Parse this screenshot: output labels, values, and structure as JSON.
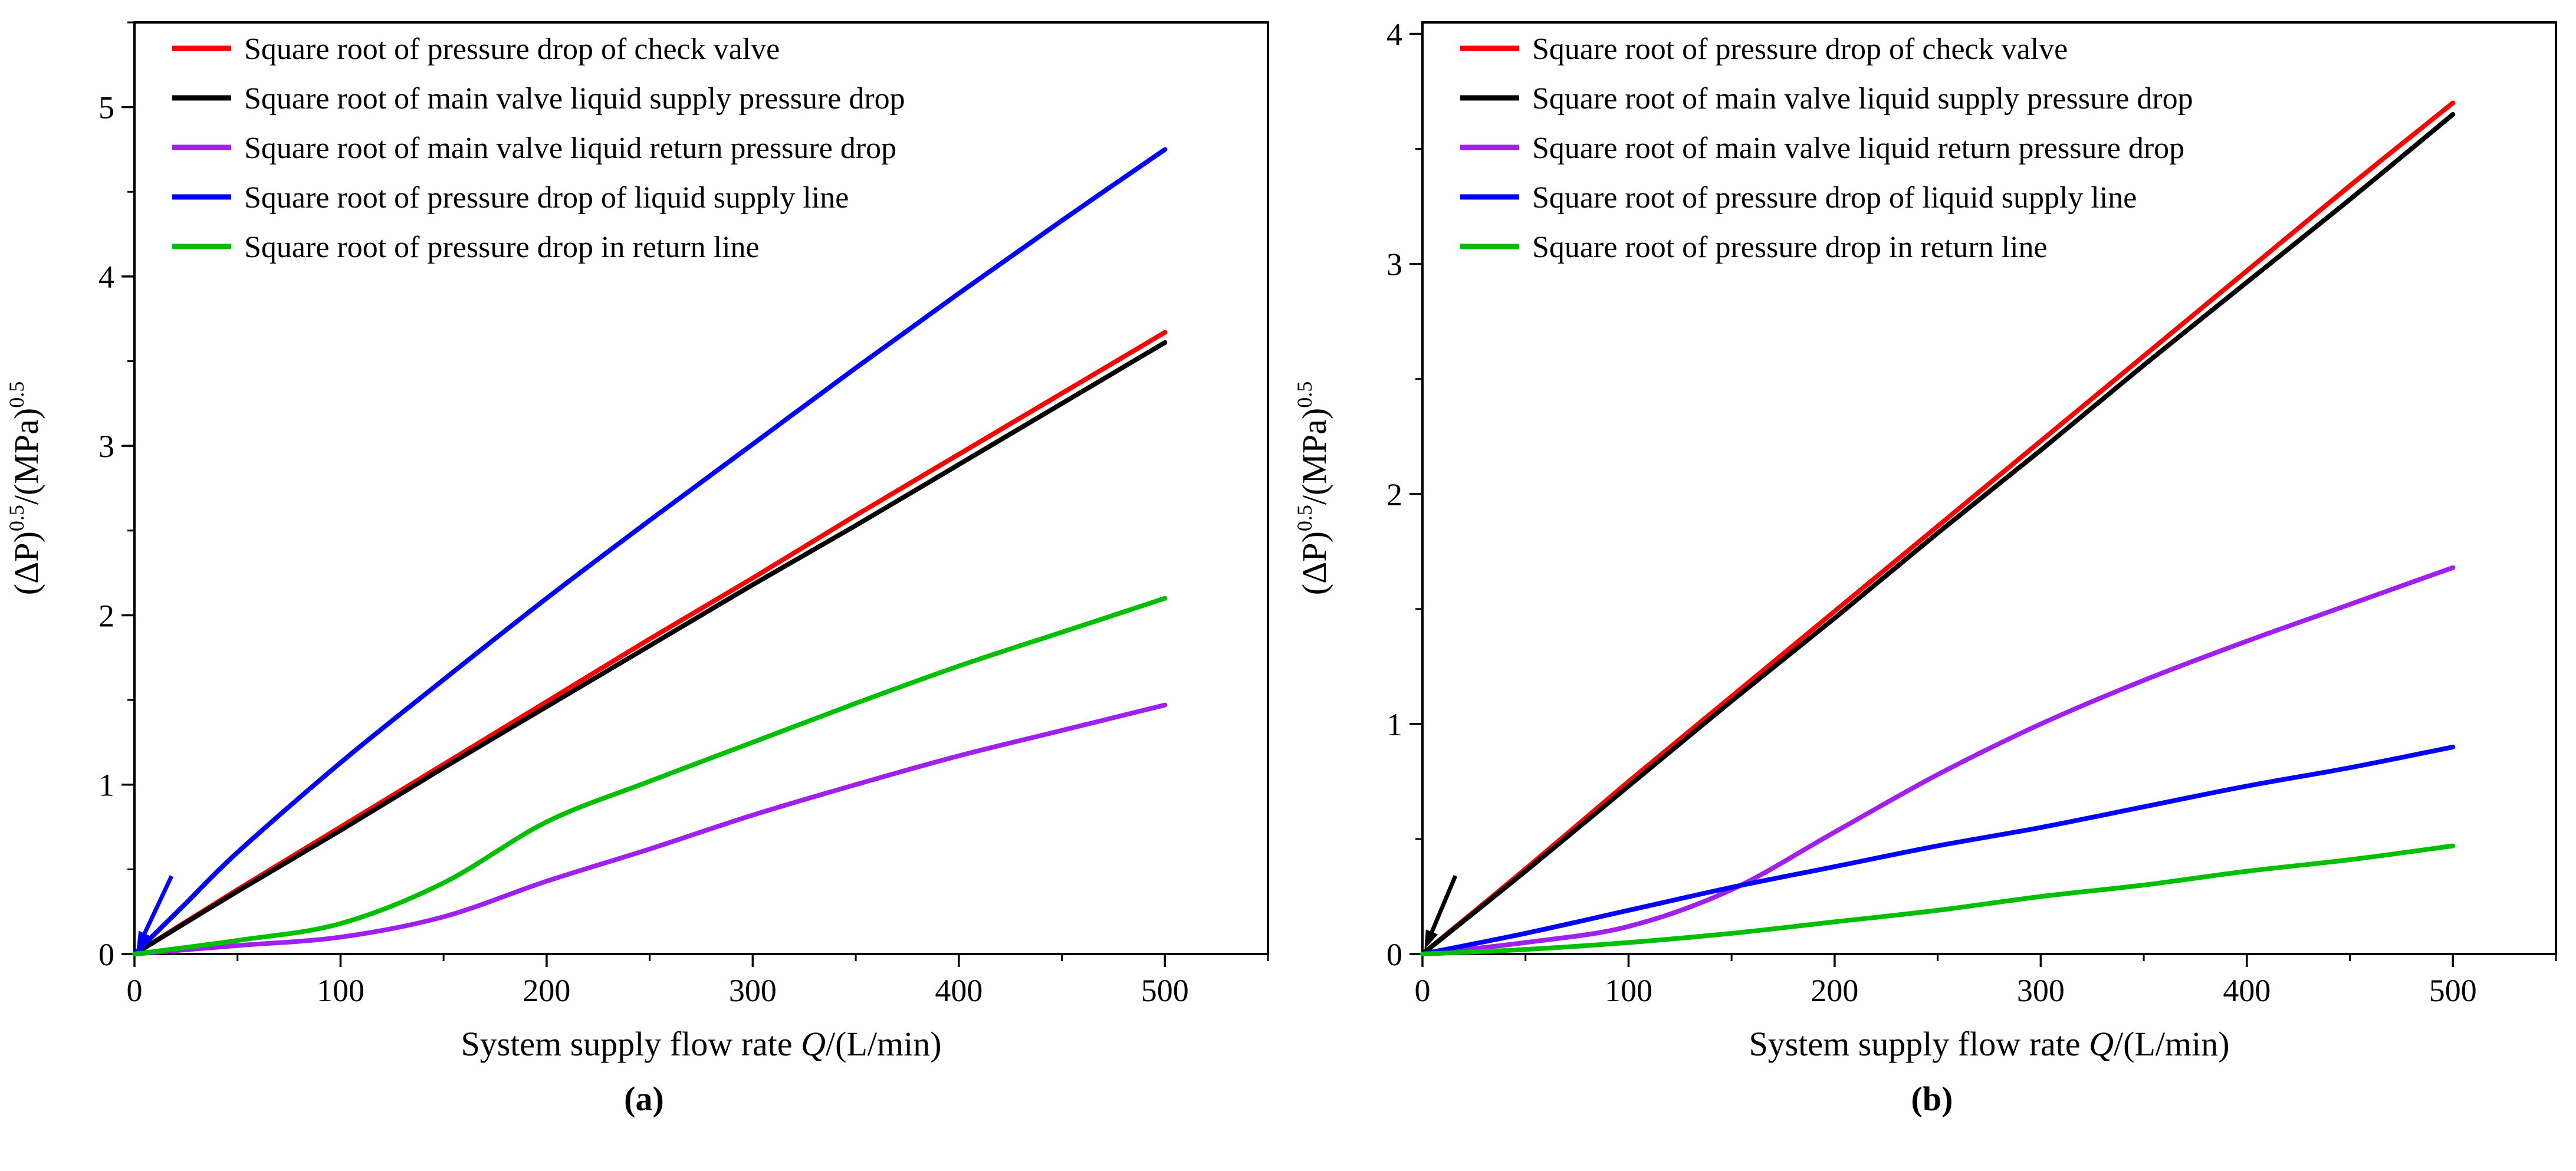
{
  "figure": {
    "background": "#ffffff",
    "text_color": "#000000",
    "frame_color": "#000000"
  },
  "chart_data": [
    {
      "type": "line",
      "caption": "(a)",
      "xlabel_parts": [
        {
          "text": "System supply flow rate "
        },
        {
          "text": "Q",
          "italic": true
        },
        {
          "text": "/(L/min)"
        }
      ],
      "ylabel_parts": [
        {
          "text": "(ΔP)"
        },
        {
          "text": "0.5",
          "sup": true
        },
        {
          "text": "/(MPa)"
        },
        {
          "text": "0.5",
          "sup": true
        }
      ],
      "xlim": [
        0,
        550
      ],
      "ylim": [
        0,
        5.5
      ],
      "xticks": [
        0,
        100,
        200,
        300,
        400,
        500
      ],
      "yticks": [
        0,
        1,
        2,
        3,
        4,
        5
      ],
      "x_minor_step": 50,
      "y_minor_step": 0.5,
      "grid": false,
      "legend_position": "top-left",
      "origin_arrow": {
        "color": "#0000ff",
        "tail": [
          18,
          0.46
        ],
        "tip": [
          1,
          0.02
        ]
      },
      "series": [
        {
          "name": "Square root of pressure drop of check valve",
          "color": "#ff0000",
          "x": [
            0,
            50,
            100,
            150,
            200,
            250,
            300,
            350,
            400,
            450,
            500
          ],
          "y": [
            0,
            0.38,
            0.75,
            1.12,
            1.49,
            1.86,
            2.22,
            2.59,
            2.95,
            3.31,
            3.67
          ]
        },
        {
          "name": "Square root of main valve liquid supply pressure drop",
          "color": "#000000",
          "x": [
            0,
            50,
            100,
            150,
            200,
            250,
            300,
            350,
            400,
            450,
            500
          ],
          "y": [
            0,
            0.37,
            0.73,
            1.1,
            1.46,
            1.82,
            2.18,
            2.53,
            2.89,
            3.25,
            3.61
          ]
        },
        {
          "name": "Square root of main valve liquid return  pressure drop",
          "color": "#a020f0",
          "x": [
            0,
            50,
            100,
            150,
            200,
            250,
            300,
            350,
            400,
            450,
            500
          ],
          "y": [
            0,
            0.05,
            0.1,
            0.22,
            0.43,
            0.62,
            0.82,
            1.0,
            1.17,
            1.32,
            1.47
          ]
        },
        {
          "name": "Square root of pressure drop of liquid supply line",
          "color": "#0000ff",
          "x": [
            0,
            10,
            25,
            50,
            100,
            150,
            200,
            250,
            300,
            350,
            400,
            450,
            500
          ],
          "y": [
            0,
            0.12,
            0.3,
            0.6,
            1.13,
            1.62,
            2.1,
            2.56,
            3.01,
            3.46,
            3.9,
            4.33,
            4.75
          ]
        },
        {
          "name": "Square root of pressure drop in return line",
          "color": "#00bf00",
          "x": [
            0,
            50,
            100,
            150,
            200,
            250,
            300,
            350,
            400,
            450,
            500
          ],
          "y": [
            0,
            0.08,
            0.18,
            0.42,
            0.78,
            1.02,
            1.25,
            1.48,
            1.7,
            1.9,
            2.1
          ]
        }
      ]
    },
    {
      "type": "line",
      "caption": "(b)",
      "xlabel_parts": [
        {
          "text": "System supply flow rate "
        },
        {
          "text": "Q",
          "italic": true
        },
        {
          "text": "/(L/min)"
        }
      ],
      "ylabel_parts": [
        {
          "text": "(ΔP)"
        },
        {
          "text": "0.5",
          "sup": true
        },
        {
          "text": "/(MPa)"
        },
        {
          "text": "0.5",
          "sup": true
        }
      ],
      "xlim": [
        0,
        550
      ],
      "ylim": [
        0,
        4.05
      ],
      "xticks": [
        0,
        100,
        200,
        300,
        400,
        500
      ],
      "yticks": [
        0,
        1,
        2,
        3,
        4
      ],
      "x_minor_step": 50,
      "y_minor_step": 0.5,
      "grid": false,
      "legend_position": "top-left",
      "origin_arrow": {
        "color": "#000000",
        "tail": [
          16,
          0.34
        ],
        "tip": [
          1,
          0.02
        ]
      },
      "series": [
        {
          "name": "Square root of pressure drop of check valve",
          "color": "#ff0000",
          "x": [
            0,
            50,
            100,
            150,
            200,
            250,
            300,
            350,
            400,
            450,
            500
          ],
          "y": [
            0,
            0.37,
            0.75,
            1.12,
            1.49,
            1.86,
            2.23,
            2.6,
            2.97,
            3.34,
            3.7
          ]
        },
        {
          "name": "Square root of main valve liquid supply pressure drop",
          "color": "#000000",
          "x": [
            0,
            50,
            100,
            150,
            200,
            250,
            300,
            350,
            400,
            450,
            500
          ],
          "y": [
            0,
            0.36,
            0.73,
            1.1,
            1.46,
            1.83,
            2.19,
            2.56,
            2.92,
            3.28,
            3.65
          ]
        },
        {
          "name": "Square root of main valve liquid return  pressure drop",
          "color": "#a020f0",
          "x": [
            0,
            50,
            100,
            150,
            200,
            250,
            300,
            350,
            400,
            450,
            500
          ],
          "y": [
            0,
            0.05,
            0.12,
            0.28,
            0.53,
            0.78,
            1.0,
            1.19,
            1.36,
            1.52,
            1.68
          ]
        },
        {
          "name": "Square root of pressure drop of liquid supply line",
          "color": "#0000ff",
          "x": [
            0,
            50,
            100,
            150,
            200,
            250,
            300,
            350,
            400,
            450,
            500
          ],
          "y": [
            0,
            0.09,
            0.19,
            0.29,
            0.38,
            0.47,
            0.55,
            0.64,
            0.73,
            0.81,
            0.9
          ]
        },
        {
          "name": "Square root of pressure drop in return line",
          "color": "#00bf00",
          "x": [
            0,
            50,
            100,
            150,
            200,
            250,
            300,
            350,
            400,
            450,
            500
          ],
          "y": [
            0,
            0.02,
            0.05,
            0.09,
            0.14,
            0.19,
            0.25,
            0.3,
            0.36,
            0.41,
            0.47
          ]
        }
      ]
    }
  ]
}
